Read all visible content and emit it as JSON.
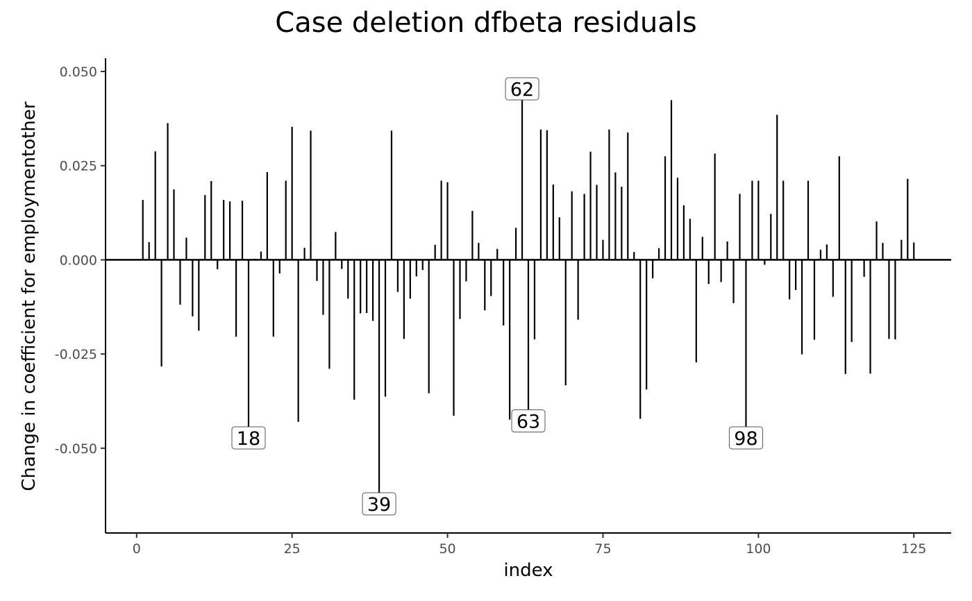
{
  "chart_data": {
    "type": "lollipop",
    "title": "Case deletion dfbeta residuals",
    "xlabel": "index",
    "ylabel": "Change in coefficient for employmentother",
    "xlim": [
      -5,
      131
    ],
    "ylim": [
      -0.0725,
      0.0535
    ],
    "xticks": [
      0,
      25,
      50,
      75,
      100,
      125
    ],
    "xtick_labels": [
      "0",
      "25",
      "50",
      "75",
      "100",
      "125"
    ],
    "yticks": [
      -0.05,
      -0.025,
      0,
      0.025,
      0.05
    ],
    "ytick_labels": [
      "-0.050",
      "-0.025",
      "0.000",
      "0.025",
      "0.050"
    ],
    "x": [
      1,
      2,
      3,
      4,
      5,
      6,
      7,
      8,
      9,
      10,
      11,
      12,
      13,
      14,
      15,
      16,
      17,
      18,
      19,
      20,
      21,
      22,
      23,
      24,
      25,
      26,
      27,
      28,
      29,
      30,
      31,
      32,
      33,
      34,
      35,
      36,
      37,
      38,
      39,
      40,
      41,
      42,
      43,
      44,
      45,
      46,
      47,
      48,
      49,
      50,
      51,
      52,
      53,
      54,
      55,
      56,
      57,
      58,
      59,
      60,
      61,
      62,
      63,
      64,
      65,
      66,
      67,
      68,
      69,
      70,
      71,
      72,
      73,
      74,
      75,
      76,
      77,
      78,
      79,
      80,
      81,
      82,
      83,
      84,
      85,
      86,
      87,
      88,
      89,
      90,
      91,
      92,
      93,
      94,
      95,
      96,
      97,
      98,
      99,
      100,
      101,
      102,
      103,
      104,
      105,
      106,
      107,
      108,
      109,
      110,
      111,
      112,
      113,
      114,
      115,
      116,
      117,
      118,
      119,
      120,
      121,
      122,
      123,
      124,
      125
    ],
    "y": [
      0.0159,
      0.0047,
      0.0288,
      -0.0283,
      0.0363,
      0.0187,
      -0.0119,
      0.0059,
      -0.015,
      -0.0188,
      0.0172,
      0.0209,
      -0.0025,
      0.0159,
      0.0155,
      -0.0204,
      0.0157,
      -0.0467,
      0.0003,
      0.0022,
      0.0233,
      -0.0204,
      -0.0036,
      0.021,
      0.0353,
      -0.043,
      0.0032,
      0.0343,
      -0.0056,
      -0.0146,
      -0.0289,
      0.0074,
      -0.0024,
      -0.0103,
      -0.0371,
      -0.0142,
      -0.0141,
      -0.0162,
      -0.0642,
      -0.0363,
      0.0343,
      -0.0085,
      -0.021,
      -0.0103,
      -0.0044,
      -0.0027,
      -0.0354,
      0.004,
      0.021,
      0.0206,
      -0.0414,
      -0.0157,
      -0.0057,
      0.013,
      0.0045,
      -0.0134,
      -0.0096,
      0.0029,
      -0.0174,
      -0.0424,
      0.0085,
      0.0454,
      -0.0422,
      -0.0211,
      0.0346,
      0.0344,
      0.02,
      0.0113,
      -0.0333,
      0.0182,
      -0.0159,
      0.0175,
      0.0287,
      0.0199,
      0.0053,
      0.0346,
      0.0232,
      0.0194,
      0.0338,
      0.0021,
      -0.0422,
      -0.0344,
      -0.0049,
      0.0031,
      0.0275,
      0.0424,
      0.0218,
      0.0145,
      0.0109,
      -0.0272,
      0.0061,
      -0.0064,
      0.0282,
      -0.0059,
      0.0049,
      -0.0115,
      0.0175,
      -0.0467,
      0.021,
      0.021,
      -0.0013,
      0.0122,
      0.0385,
      0.021,
      -0.0105,
      -0.008,
      -0.0251,
      0.021,
      -0.0212,
      0.0027,
      0.0041,
      -0.0098,
      0.0275,
      -0.0303,
      -0.0218,
      0.0002,
      -0.0045,
      -0.0302,
      0.0102,
      0.0045,
      -0.021,
      -0.0211,
      0.0053,
      0.0215,
      0.0046
    ],
    "annotations": [
      {
        "index": 18,
        "text": "18",
        "y": -0.0467
      },
      {
        "index": 39,
        "text": "39",
        "y": -0.0642
      },
      {
        "index": 62,
        "text": "62",
        "y": 0.0454
      },
      {
        "index": 63,
        "text": "63",
        "y": -0.0422
      },
      {
        "index": 98,
        "text": "98",
        "y": -0.0467
      }
    ],
    "grid": false,
    "legend": "none"
  }
}
